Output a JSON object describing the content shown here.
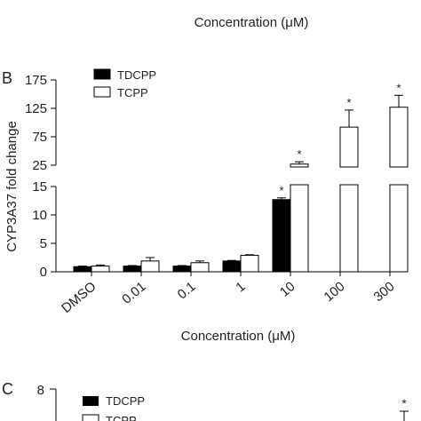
{
  "panel_a_fragment": {
    "xlabel": "Concentration (μM)"
  },
  "panel_b": {
    "label": "B"
  },
  "panel_c_fragment": {
    "label": "C",
    "y_top_tick": "8",
    "legend_first": "TDCPP",
    "legend_second": "TCPP",
    "marker": "*"
  },
  "chart_data": {
    "type": "bar",
    "categories": [
      "DMSO",
      "0.01",
      "0.1",
      "1",
      "10",
      "100",
      "300"
    ],
    "ylabel": "CYP3A37 fold change",
    "xlabel": "Concentration (μM)",
    "axis_break": true,
    "lower_segment": {
      "ylim": [
        0,
        15
      ],
      "ticks": [
        "0",
        "5",
        "10",
        "15"
      ]
    },
    "upper_segment": {
      "ylim": [
        25,
        175
      ],
      "ticks": [
        "25",
        "75",
        "125",
        "175"
      ]
    },
    "legend_position": "top-left",
    "series": [
      {
        "name": "TDCPP",
        "color": "#000000",
        "values": [
          0.9,
          1.0,
          1.0,
          1.9,
          12.7,
          null,
          null
        ],
        "errors": [
          0.1,
          0.1,
          0.1,
          0.1,
          0.3,
          null,
          null
        ],
        "significant": [
          false,
          false,
          false,
          false,
          true,
          false,
          false
        ]
      },
      {
        "name": "TCPP",
        "color": "#ffffff",
        "values": [
          1.0,
          1.9,
          1.6,
          2.9,
          27,
          92,
          127
        ],
        "errors": [
          0.2,
          0.6,
          0.3,
          0.1,
          4,
          30,
          21
        ],
        "significant": [
          false,
          false,
          false,
          false,
          true,
          true,
          true
        ]
      }
    ],
    "significance_marker": "*"
  }
}
